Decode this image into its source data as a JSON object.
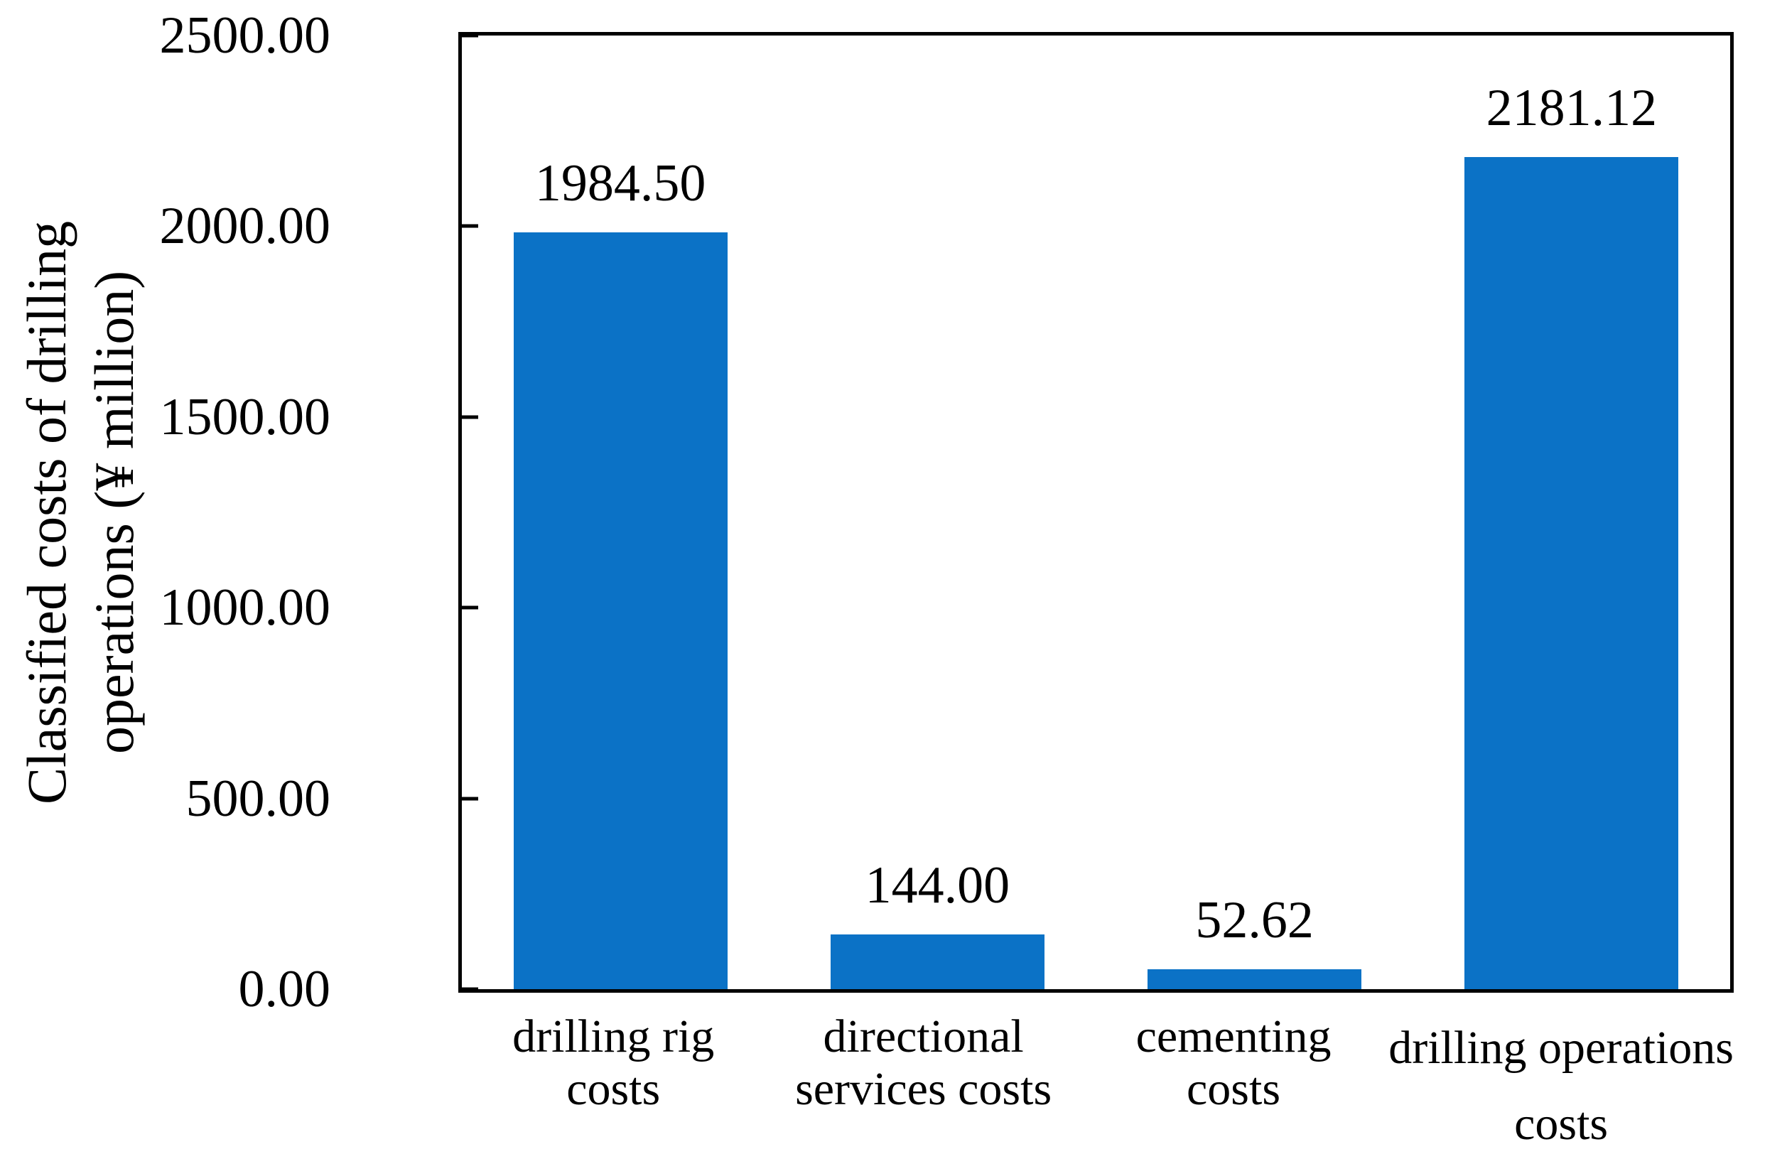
{
  "chart_data": {
    "type": "bar",
    "title": "",
    "ylabel": "Classified costs of drilling\noperations (¥ million)",
    "xlabel": "",
    "categories": [
      "drilling rig\ncosts",
      "directional\nservices costs",
      "cementing\ncosts",
      "drilling operations\ncosts"
    ],
    "values": [
      1984.5,
      144.0,
      52.62,
      2181.12
    ],
    "value_labels": [
      "1984.50",
      "144.00",
      "52.62",
      "2181.12"
    ],
    "ylim": [
      0,
      2500
    ],
    "ytick_step": 500,
    "ytick_labels": [
      "2500.00",
      "2000.00",
      "1500.00",
      "1000.00",
      "500.00",
      "0.00"
    ],
    "grid": false,
    "legend": "none",
    "bar_color": "#0B72C6",
    "axis_color": "#000000",
    "text_color": "#000000",
    "background_color": "#FFFFFF"
  }
}
